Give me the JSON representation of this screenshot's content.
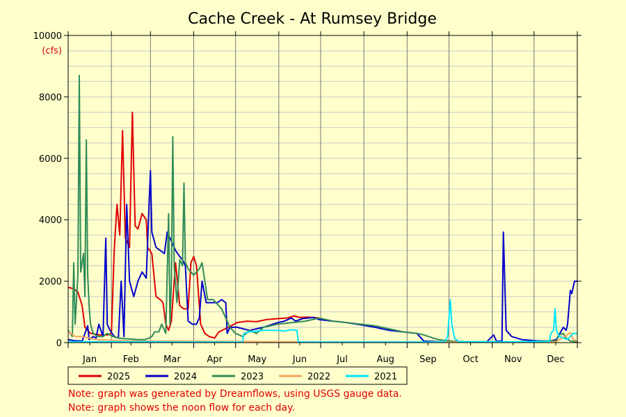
{
  "chart_data": {
    "type": "line",
    "title": "Cache Creek - At Rumsey Bridge",
    "unit_label": "(cfs)",
    "ylim": [
      0,
      10000
    ],
    "yticks": [
      0,
      2000,
      4000,
      6000,
      8000,
      10000
    ],
    "ygrid_step": 500,
    "xlim": [
      0,
      365
    ],
    "month_labels": [
      "Jan",
      "Feb",
      "Mar",
      "Apr",
      "May",
      "Jun",
      "Jul",
      "Aug",
      "Sep",
      "Oct",
      "Nov",
      "Dec"
    ],
    "grid": true,
    "legend_position": "bottom-left",
    "series": [
      {
        "name": "2025",
        "color": "#e00000",
        "points": [
          [
            0,
            1800
          ],
          [
            4,
            1750
          ],
          [
            7,
            1650
          ],
          [
            10,
            1200
          ],
          [
            12,
            500
          ],
          [
            16,
            300
          ],
          [
            22,
            250
          ],
          [
            28,
            250
          ],
          [
            31,
            300
          ],
          [
            33,
            3000
          ],
          [
            35,
            4500
          ],
          [
            37,
            3500
          ],
          [
            39,
            6900
          ],
          [
            41,
            3400
          ],
          [
            44,
            3100
          ],
          [
            46,
            7500
          ],
          [
            48,
            3800
          ],
          [
            50,
            3700
          ],
          [
            53,
            4200
          ],
          [
            56,
            4000
          ],
          [
            57,
            3100
          ],
          [
            60,
            2900
          ],
          [
            63,
            1500
          ],
          [
            66,
            1400
          ],
          [
            68,
            1300
          ],
          [
            70,
            600
          ],
          [
            72,
            400
          ],
          [
            74,
            700
          ],
          [
            76,
            2000
          ],
          [
            77,
            2600
          ],
          [
            80,
            1200
          ],
          [
            83,
            1100
          ],
          [
            86,
            1100
          ],
          [
            88,
            2600
          ],
          [
            90,
            2800
          ],
          [
            92,
            2500
          ],
          [
            95,
            600
          ],
          [
            98,
            300
          ],
          [
            101,
            200
          ],
          [
            105,
            150
          ],
          [
            108,
            350
          ],
          [
            115,
            500
          ],
          [
            121,
            650
          ],
          [
            128,
            700
          ],
          [
            135,
            680
          ],
          [
            142,
            750
          ],
          [
            150,
            780
          ],
          [
            157,
            800
          ],
          [
            162,
            870
          ],
          [
            166,
            820
          ],
          [
            172,
            830
          ],
          [
            180,
            800
          ]
        ]
      },
      {
        "name": "2024",
        "color": "#0000cc",
        "points": [
          [
            0,
            100
          ],
          [
            5,
            60
          ],
          [
            10,
            50
          ],
          [
            14,
            550
          ],
          [
            15,
            100
          ],
          [
            18,
            200
          ],
          [
            20,
            150
          ],
          [
            22,
            600
          ],
          [
            25,
            200
          ],
          [
            27,
            3400
          ],
          [
            28,
            600
          ],
          [
            30,
            400
          ],
          [
            33,
            200
          ],
          [
            36,
            150
          ],
          [
            38,
            2000
          ],
          [
            40,
            200
          ],
          [
            42,
            4500
          ],
          [
            44,
            2000
          ],
          [
            47,
            1500
          ],
          [
            50,
            2000
          ],
          [
            53,
            2300
          ],
          [
            56,
            2100
          ],
          [
            58,
            4500
          ],
          [
            59,
            5600
          ],
          [
            60,
            3600
          ],
          [
            63,
            3100
          ],
          [
            66,
            3000
          ],
          [
            69,
            2900
          ],
          [
            71,
            3600
          ],
          [
            74,
            3300
          ],
          [
            77,
            3000
          ],
          [
            80,
            2800
          ],
          [
            82,
            2700
          ],
          [
            84,
            2500
          ],
          [
            86,
            700
          ],
          [
            89,
            600
          ],
          [
            92,
            600
          ],
          [
            94,
            800
          ],
          [
            96,
            2000
          ],
          [
            99,
            1300
          ],
          [
            103,
            1300
          ],
          [
            107,
            1300
          ],
          [
            110,
            1400
          ],
          [
            113,
            1300
          ],
          [
            114,
            300
          ],
          [
            116,
            500
          ],
          [
            121,
            500
          ],
          [
            130,
            400
          ],
          [
            140,
            500
          ],
          [
            150,
            650
          ],
          [
            155,
            700
          ],
          [
            160,
            800
          ],
          [
            163,
            700
          ],
          [
            168,
            780
          ],
          [
            172,
            800
          ],
          [
            176,
            820
          ],
          [
            180,
            750
          ],
          [
            190,
            700
          ],
          [
            200,
            650
          ],
          [
            210,
            580
          ],
          [
            220,
            500
          ],
          [
            230,
            400
          ],
          [
            240,
            350
          ],
          [
            250,
            300
          ],
          [
            255,
            50
          ],
          [
            270,
            20
          ],
          [
            290,
            20
          ],
          [
            300,
            20
          ],
          [
            305,
            250
          ],
          [
            307,
            50
          ],
          [
            311,
            50
          ],
          [
            312,
            3600
          ],
          [
            314,
            400
          ],
          [
            318,
            200
          ],
          [
            325,
            100
          ],
          [
            335,
            60
          ],
          [
            345,
            50
          ],
          [
            350,
            100
          ],
          [
            355,
            500
          ],
          [
            357,
            400
          ],
          [
            358,
            600
          ],
          [
            360,
            1700
          ],
          [
            361,
            1600
          ],
          [
            363,
            2000
          ],
          [
            365,
            2000
          ]
        ]
      },
      {
        "name": "2023",
        "color": "#2e8b57",
        "points": [
          [
            0,
            400
          ],
          [
            3,
            200
          ],
          [
            4,
            2600
          ],
          [
            5,
            600
          ],
          [
            7,
            2200
          ],
          [
            8,
            8700
          ],
          [
            9,
            2300
          ],
          [
            11,
            2900
          ],
          [
            12,
            1500
          ],
          [
            13,
            6600
          ],
          [
            14,
            2200
          ],
          [
            15,
            1200
          ],
          [
            16,
            600
          ],
          [
            18,
            300
          ],
          [
            21,
            200
          ],
          [
            25,
            200
          ],
          [
            28,
            300
          ],
          [
            32,
            200
          ],
          [
            36,
            150
          ],
          [
            40,
            130
          ],
          [
            45,
            120
          ],
          [
            50,
            100
          ],
          [
            55,
            100
          ],
          [
            58,
            150
          ],
          [
            60,
            200
          ],
          [
            62,
            350
          ],
          [
            65,
            350
          ],
          [
            67,
            600
          ],
          [
            70,
            300
          ],
          [
            72,
            4200
          ],
          [
            73,
            600
          ],
          [
            74,
            2000
          ],
          [
            75,
            6700
          ],
          [
            76,
            2500
          ],
          [
            78,
            1300
          ],
          [
            80,
            2700
          ],
          [
            82,
            2500
          ],
          [
            83,
            5200
          ],
          [
            84,
            2600
          ],
          [
            86,
            2400
          ],
          [
            90,
            2200
          ],
          [
            94,
            2400
          ],
          [
            96,
            2600
          ],
          [
            98,
            2000
          ],
          [
            100,
            1400
          ],
          [
            104,
            1400
          ],
          [
            108,
            1200
          ],
          [
            110,
            1100
          ],
          [
            113,
            800
          ],
          [
            116,
            500
          ],
          [
            120,
            300
          ],
          [
            125,
            200
          ],
          [
            130,
            400
          ],
          [
            135,
            300
          ],
          [
            140,
            500
          ],
          [
            150,
            600
          ],
          [
            160,
            650
          ],
          [
            170,
            700
          ],
          [
            180,
            800
          ],
          [
            190,
            700
          ],
          [
            200,
            650
          ],
          [
            210,
            600
          ],
          [
            220,
            550
          ],
          [
            230,
            450
          ],
          [
            240,
            350
          ],
          [
            250,
            300
          ],
          [
            255,
            250
          ],
          [
            265,
            100
          ],
          [
            275,
            50
          ],
          [
            285,
            30
          ],
          [
            300,
            30
          ],
          [
            320,
            20
          ],
          [
            340,
            50
          ],
          [
            350,
            60
          ],
          [
            352,
            250
          ],
          [
            355,
            300
          ],
          [
            357,
            150
          ],
          [
            360,
            50
          ],
          [
            365,
            20
          ]
        ]
      },
      {
        "name": "2022",
        "color": "#f4a460",
        "points": [
          [
            0,
            350
          ],
          [
            5,
            200
          ],
          [
            10,
            200
          ],
          [
            15,
            150
          ],
          [
            20,
            100
          ],
          [
            30,
            80
          ],
          [
            40,
            60
          ],
          [
            60,
            50
          ],
          [
            80,
            50
          ],
          [
            100,
            40
          ],
          [
            120,
            40
          ],
          [
            140,
            30
          ],
          [
            160,
            30
          ],
          [
            180,
            20
          ],
          [
            200,
            20
          ],
          [
            250,
            20
          ],
          [
            300,
            20
          ],
          [
            350,
            30
          ],
          [
            360,
            330
          ],
          [
            362,
            100
          ],
          [
            365,
            50
          ]
        ]
      },
      {
        "name": "2021",
        "color": "#00e5ff",
        "points": [
          [
            0,
            30
          ],
          [
            20,
            30
          ],
          [
            40,
            30
          ],
          [
            60,
            30
          ],
          [
            80,
            20
          ],
          [
            100,
            20
          ],
          [
            120,
            20
          ],
          [
            125,
            20
          ],
          [
            126,
            300
          ],
          [
            130,
            350
          ],
          [
            140,
            400
          ],
          [
            150,
            400
          ],
          [
            155,
            380
          ],
          [
            160,
            420
          ],
          [
            164,
            400
          ],
          [
            165,
            20
          ],
          [
            170,
            20
          ],
          [
            200,
            20
          ],
          [
            240,
            20
          ],
          [
            270,
            20
          ],
          [
            272,
            200
          ],
          [
            274,
            1400
          ],
          [
            275,
            600
          ],
          [
            277,
            150
          ],
          [
            280,
            30
          ],
          [
            300,
            30
          ],
          [
            320,
            30
          ],
          [
            345,
            40
          ],
          [
            346,
            300
          ],
          [
            348,
            400
          ],
          [
            349,
            1100
          ],
          [
            350,
            400
          ],
          [
            352,
            200
          ],
          [
            358,
            100
          ],
          [
            362,
            300
          ],
          [
            365,
            300
          ]
        ]
      }
    ]
  },
  "notes": [
    "Note: graph was generated by Dreamflows, using USGS gauge data.",
    "Note: graph shows the noon flow for each day."
  ]
}
